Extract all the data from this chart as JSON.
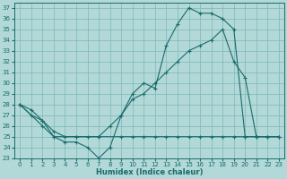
{
  "xlabel": "Humidex (Indice chaleur)",
  "ylabel": "",
  "bg_color": "#b2d8d8",
  "line_color": "#1a6b6b",
  "grid_color": "#7ab8b8",
  "xlim": [
    -0.5,
    23.5
  ],
  "ylim": [
    23,
    37.5
  ],
  "xticks": [
    0,
    1,
    2,
    3,
    4,
    5,
    6,
    7,
    8,
    9,
    10,
    11,
    12,
    13,
    14,
    15,
    16,
    17,
    18,
    19,
    20,
    21,
    22,
    23
  ],
  "yticks": [
    23,
    24,
    25,
    26,
    27,
    28,
    29,
    30,
    31,
    32,
    33,
    34,
    35,
    36,
    37
  ],
  "line1_x": [
    0,
    1,
    2,
    3,
    4,
    5,
    6,
    7,
    8,
    9,
    10,
    11,
    12,
    13,
    14,
    15,
    16,
    17,
    18,
    19,
    20,
    21,
    22,
    23
  ],
  "line1_y": [
    28,
    27,
    26.5,
    25,
    24.5,
    24.5,
    24,
    23,
    24,
    27,
    29,
    30,
    29.5,
    33.5,
    35.5,
    37,
    36.5,
    36.5,
    36,
    35,
    25,
    25,
    25,
    25
  ],
  "line2_x": [
    0,
    1,
    2,
    3,
    4,
    5,
    6,
    7,
    8,
    9,
    10,
    11,
    12,
    13,
    14,
    15,
    16,
    17,
    18,
    19,
    20,
    21,
    22,
    23
  ],
  "line2_y": [
    28,
    27.5,
    26.5,
    25.5,
    25,
    25,
    25,
    25,
    26,
    27,
    28.5,
    29,
    30,
    31,
    32,
    33,
    33.5,
    34,
    35,
    32,
    30.5,
    25,
    25,
    25
  ],
  "line3_x": [
    0,
    2,
    3,
    5,
    7,
    9,
    10,
    11,
    12,
    13,
    14,
    15,
    16,
    17,
    18,
    19,
    20,
    21,
    22,
    23
  ],
  "line3_y": [
    28,
    26,
    25,
    25,
    25,
    25,
    25,
    25,
    25,
    25,
    25,
    25,
    25,
    25,
    25,
    25,
    25,
    25,
    25,
    25
  ]
}
